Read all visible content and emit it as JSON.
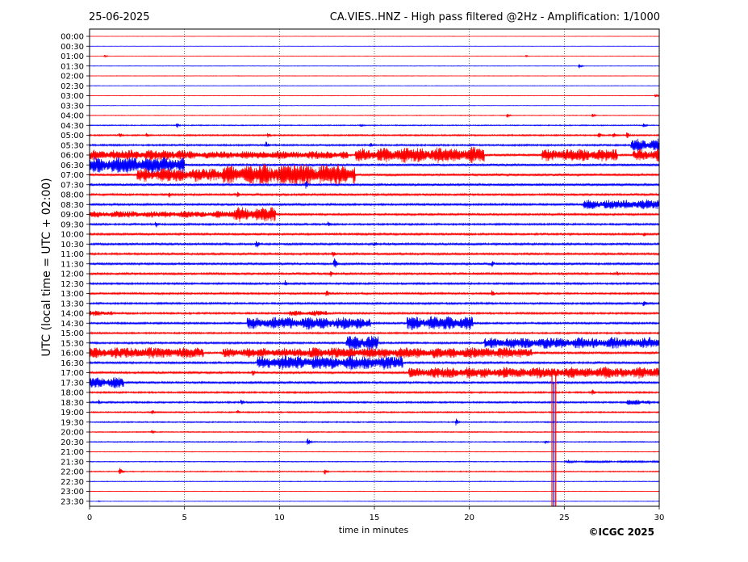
{
  "header": {
    "date": "25-06-2025",
    "title": "CA.VIES..HNZ - High pass filtered @2Hz - Amplification: 1/1000"
  },
  "footer": {
    "copyright": "©ICGC 2025"
  },
  "chart_data": {
    "type": "line",
    "xlabel": "time in minutes",
    "ylabel": "UTC (local time = UTC + 02:00)",
    "xlim": [
      0,
      30
    ],
    "x_ticks": [
      0,
      5,
      10,
      15,
      20,
      25,
      30
    ],
    "vertical_gridlines": [
      5,
      10,
      15,
      20,
      25
    ],
    "grid": "vertical dotted",
    "series_colors": [
      "#ff0000",
      "#0000ff"
    ],
    "rows": [
      {
        "label": "00:00",
        "color": "#ff0000",
        "amp": 0.2,
        "events": [],
        "bursts": []
      },
      {
        "label": "00:30",
        "color": "#0000ff",
        "amp": 0.2,
        "events": [],
        "bursts": []
      },
      {
        "label": "01:00",
        "color": "#ff0000",
        "amp": 0.3,
        "events": [
          [
            0.8,
            2
          ],
          [
            23,
            1.5
          ]
        ],
        "bursts": []
      },
      {
        "label": "01:30",
        "color": "#0000ff",
        "amp": 0.3,
        "events": [
          [
            25.8,
            3
          ]
        ],
        "bursts": []
      },
      {
        "label": "02:00",
        "color": "#ff0000",
        "amp": 0.3,
        "events": [],
        "bursts": []
      },
      {
        "label": "02:30",
        "color": "#0000ff",
        "amp": 0.3,
        "events": [],
        "bursts": []
      },
      {
        "label": "03:00",
        "color": "#ff0000",
        "amp": 0.3,
        "events": [
          [
            29.8,
            3
          ]
        ],
        "bursts": []
      },
      {
        "label": "03:30",
        "color": "#0000ff",
        "amp": 0.3,
        "events": [],
        "bursts": []
      },
      {
        "label": "04:00",
        "color": "#ff0000",
        "amp": 0.4,
        "events": [
          [
            22,
            3
          ],
          [
            26.5,
            2.5
          ]
        ],
        "bursts": []
      },
      {
        "label": "04:30",
        "color": "#0000ff",
        "amp": 0.6,
        "events": [
          [
            4.6,
            4
          ],
          [
            14.3,
            3
          ],
          [
            29.2,
            4
          ]
        ],
        "bursts": []
      },
      {
        "label": "05:00",
        "color": "#ff0000",
        "amp": 0.9,
        "events": [
          [
            1.6,
            4
          ],
          [
            3.0,
            3
          ],
          [
            9.4,
            4
          ],
          [
            26.8,
            6
          ],
          [
            27.6,
            4
          ],
          [
            28.3,
            5
          ]
        ],
        "bursts": []
      },
      {
        "label": "05:30",
        "color": "#0000ff",
        "amp": 1.0,
        "events": [
          [
            9.3,
            5
          ],
          [
            14.8,
            4
          ]
        ],
        "bursts": [
          [
            28.5,
            30,
            9
          ]
        ]
      },
      {
        "label": "06:00",
        "color": "#ff0000",
        "amp": 1.3,
        "events": [],
        "bursts": [
          [
            0,
            5,
            8
          ],
          [
            5,
            13.6,
            6
          ],
          [
            14,
            15.2,
            10
          ],
          [
            15.2,
            20.8,
            11
          ],
          [
            23.8,
            27.8,
            9
          ],
          [
            28.6,
            30,
            9
          ]
        ]
      },
      {
        "label": "06:30",
        "color": "#0000ff",
        "amp": 1.4,
        "events": [],
        "bursts": [
          [
            0,
            5,
            12
          ]
        ]
      },
      {
        "label": "07:00",
        "color": "#ff0000",
        "amp": 1.4,
        "events": [],
        "bursts": [
          [
            2.5,
            7,
            10
          ],
          [
            7,
            8.8,
            14
          ],
          [
            8.8,
            11,
            16
          ],
          [
            11,
            14,
            16
          ]
        ]
      },
      {
        "label": "07:30",
        "color": "#0000ff",
        "amp": 1.4,
        "events": [
          [
            11.4,
            6
          ]
        ],
        "bursts": []
      },
      {
        "label": "08:00",
        "color": "#ff0000",
        "amp": 1.2,
        "events": [
          [
            4.2,
            4
          ],
          [
            7.8,
            4
          ]
        ],
        "bursts": []
      },
      {
        "label": "08:30",
        "color": "#0000ff",
        "amp": 1.2,
        "events": [],
        "bursts": [
          [
            26,
            30,
            7
          ]
        ]
      },
      {
        "label": "09:00",
        "color": "#ff0000",
        "amp": 1.2,
        "events": [],
        "bursts": [
          [
            0,
            7.6,
            5
          ],
          [
            7.6,
            9.8,
            11
          ]
        ]
      },
      {
        "label": "09:30",
        "color": "#0000ff",
        "amp": 1.1,
        "events": [
          [
            3.5,
            5
          ],
          [
            12.6,
            5
          ]
        ],
        "bursts": []
      },
      {
        "label": "10:00",
        "color": "#ff0000",
        "amp": 1.2,
        "events": [
          [
            29.2,
            4
          ]
        ],
        "bursts": []
      },
      {
        "label": "10:30",
        "color": "#0000ff",
        "amp": 1.2,
        "events": [
          [
            8.8,
            6
          ],
          [
            15.0,
            5
          ]
        ],
        "bursts": []
      },
      {
        "label": "11:00",
        "color": "#ff0000",
        "amp": 1.2,
        "events": [
          [
            12.8,
            5
          ]
        ],
        "bursts": []
      },
      {
        "label": "11:30",
        "color": "#0000ff",
        "amp": 1.2,
        "events": [
          [
            12.9,
            8
          ],
          [
            21.2,
            5
          ]
        ],
        "bursts": []
      },
      {
        "label": "12:00",
        "color": "#ff0000",
        "amp": 1.2,
        "events": [
          [
            12.7,
            5
          ],
          [
            27.8,
            4
          ]
        ],
        "bursts": []
      },
      {
        "label": "12:30",
        "color": "#0000ff",
        "amp": 1.1,
        "events": [
          [
            10.3,
            5
          ]
        ],
        "bursts": []
      },
      {
        "label": "13:00",
        "color": "#ff0000",
        "amp": 1.1,
        "events": [
          [
            12.5,
            5
          ],
          [
            21.2,
            5
          ]
        ],
        "bursts": []
      },
      {
        "label": "13:30",
        "color": "#0000ff",
        "amp": 1.1,
        "events": [
          [
            29.2,
            5
          ]
        ],
        "bursts": []
      },
      {
        "label": "14:00",
        "color": "#ff0000",
        "amp": 1.1,
        "events": [],
        "bursts": [
          [
            0,
            1.2,
            4
          ],
          [
            10.5,
            12.5,
            4
          ]
        ]
      },
      {
        "label": "14:30",
        "color": "#0000ff",
        "amp": 1.1,
        "events": [],
        "bursts": [
          [
            8.3,
            14.8,
            9
          ],
          [
            16.7,
            20.2,
            10
          ]
        ]
      },
      {
        "label": "15:00",
        "color": "#ff0000",
        "amp": 1.0,
        "events": [],
        "bursts": []
      },
      {
        "label": "15:30",
        "color": "#0000ff",
        "amp": 1.1,
        "events": [],
        "bursts": [
          [
            13.5,
            15.2,
            11
          ],
          [
            20.8,
            30,
            8
          ]
        ]
      },
      {
        "label": "16:00",
        "color": "#ff0000",
        "amp": 1.2,
        "events": [],
        "bursts": [
          [
            0,
            6,
            8
          ],
          [
            7,
            11.5,
            7
          ],
          [
            11.5,
            23.3,
            8
          ]
        ]
      },
      {
        "label": "16:30",
        "color": "#0000ff",
        "amp": 1.2,
        "events": [],
        "bursts": [
          [
            8.8,
            16.5,
            10
          ]
        ]
      },
      {
        "label": "17:00",
        "color": "#ff0000",
        "amp": 1.2,
        "events": [
          [
            8.6,
            5
          ]
        ],
        "bursts": [
          [
            16.8,
            30,
            8
          ]
        ]
      },
      {
        "label": "17:30",
        "color": "#0000ff",
        "amp": 1.2,
        "events": [],
        "bursts": [
          [
            0,
            1.8,
            8
          ]
        ]
      },
      {
        "label": "18:00",
        "color": "#ff0000",
        "amp": 1.0,
        "events": [
          [
            26.5,
            4
          ]
        ],
        "bursts": []
      },
      {
        "label": "18:30",
        "color": "#0000ff",
        "amp": 1.0,
        "events": [
          [
            0.5,
            4
          ],
          [
            8.0,
            5
          ]
        ],
        "bursts": [
          [
            28.3,
            29.5,
            4
          ]
        ]
      },
      {
        "label": "19:00",
        "color": "#ff0000",
        "amp": 0.8,
        "events": [
          [
            3.3,
            4
          ],
          [
            7.8,
            3
          ]
        ],
        "bursts": []
      },
      {
        "label": "19:30",
        "color": "#0000ff",
        "amp": 0.7,
        "events": [
          [
            19.3,
            5
          ]
        ],
        "bursts": []
      },
      {
        "label": "20:00",
        "color": "#ff0000",
        "amp": 0.6,
        "events": [
          [
            3.3,
            3
          ]
        ],
        "bursts": []
      },
      {
        "label": "20:30",
        "color": "#0000ff",
        "amp": 0.6,
        "events": [
          [
            11.5,
            5
          ],
          [
            24.0,
            3
          ]
        ],
        "bursts": []
      },
      {
        "label": "21:00",
        "color": "#ff0000",
        "amp": 0.4,
        "events": [],
        "bursts": []
      },
      {
        "label": "21:30",
        "color": "#0000ff",
        "amp": 0.5,
        "events": [
          [
            25.2,
            3
          ]
        ],
        "bursts": [
          [
            25,
            30,
            1.5
          ]
        ]
      },
      {
        "label": "22:00",
        "color": "#ff0000",
        "amp": 0.6,
        "events": [
          [
            1.6,
            6
          ],
          [
            12.4,
            4
          ]
        ],
        "bursts": []
      },
      {
        "label": "22:30",
        "color": "#0000ff",
        "amp": 0.4,
        "events": [],
        "bursts": []
      },
      {
        "label": "23:00",
        "color": "#ff0000",
        "amp": 0.3,
        "events": [],
        "bursts": []
      },
      {
        "label": "23:30",
        "color": "#0000ff",
        "amp": 0.3,
        "events": [
          [
            0.5,
            1
          ]
        ],
        "bursts": []
      }
    ],
    "spikes": [
      {
        "x": 24.35,
        "color": "#ff0000",
        "from_row": "17:00",
        "to_row": "23:30"
      },
      {
        "x": 24.55,
        "color": "#ff0000",
        "from_row": "17:00",
        "to_row": "23:30"
      },
      {
        "x": 24.45,
        "color": "#0000ff",
        "from_row": "17:30",
        "to_row": "23:30"
      }
    ]
  }
}
